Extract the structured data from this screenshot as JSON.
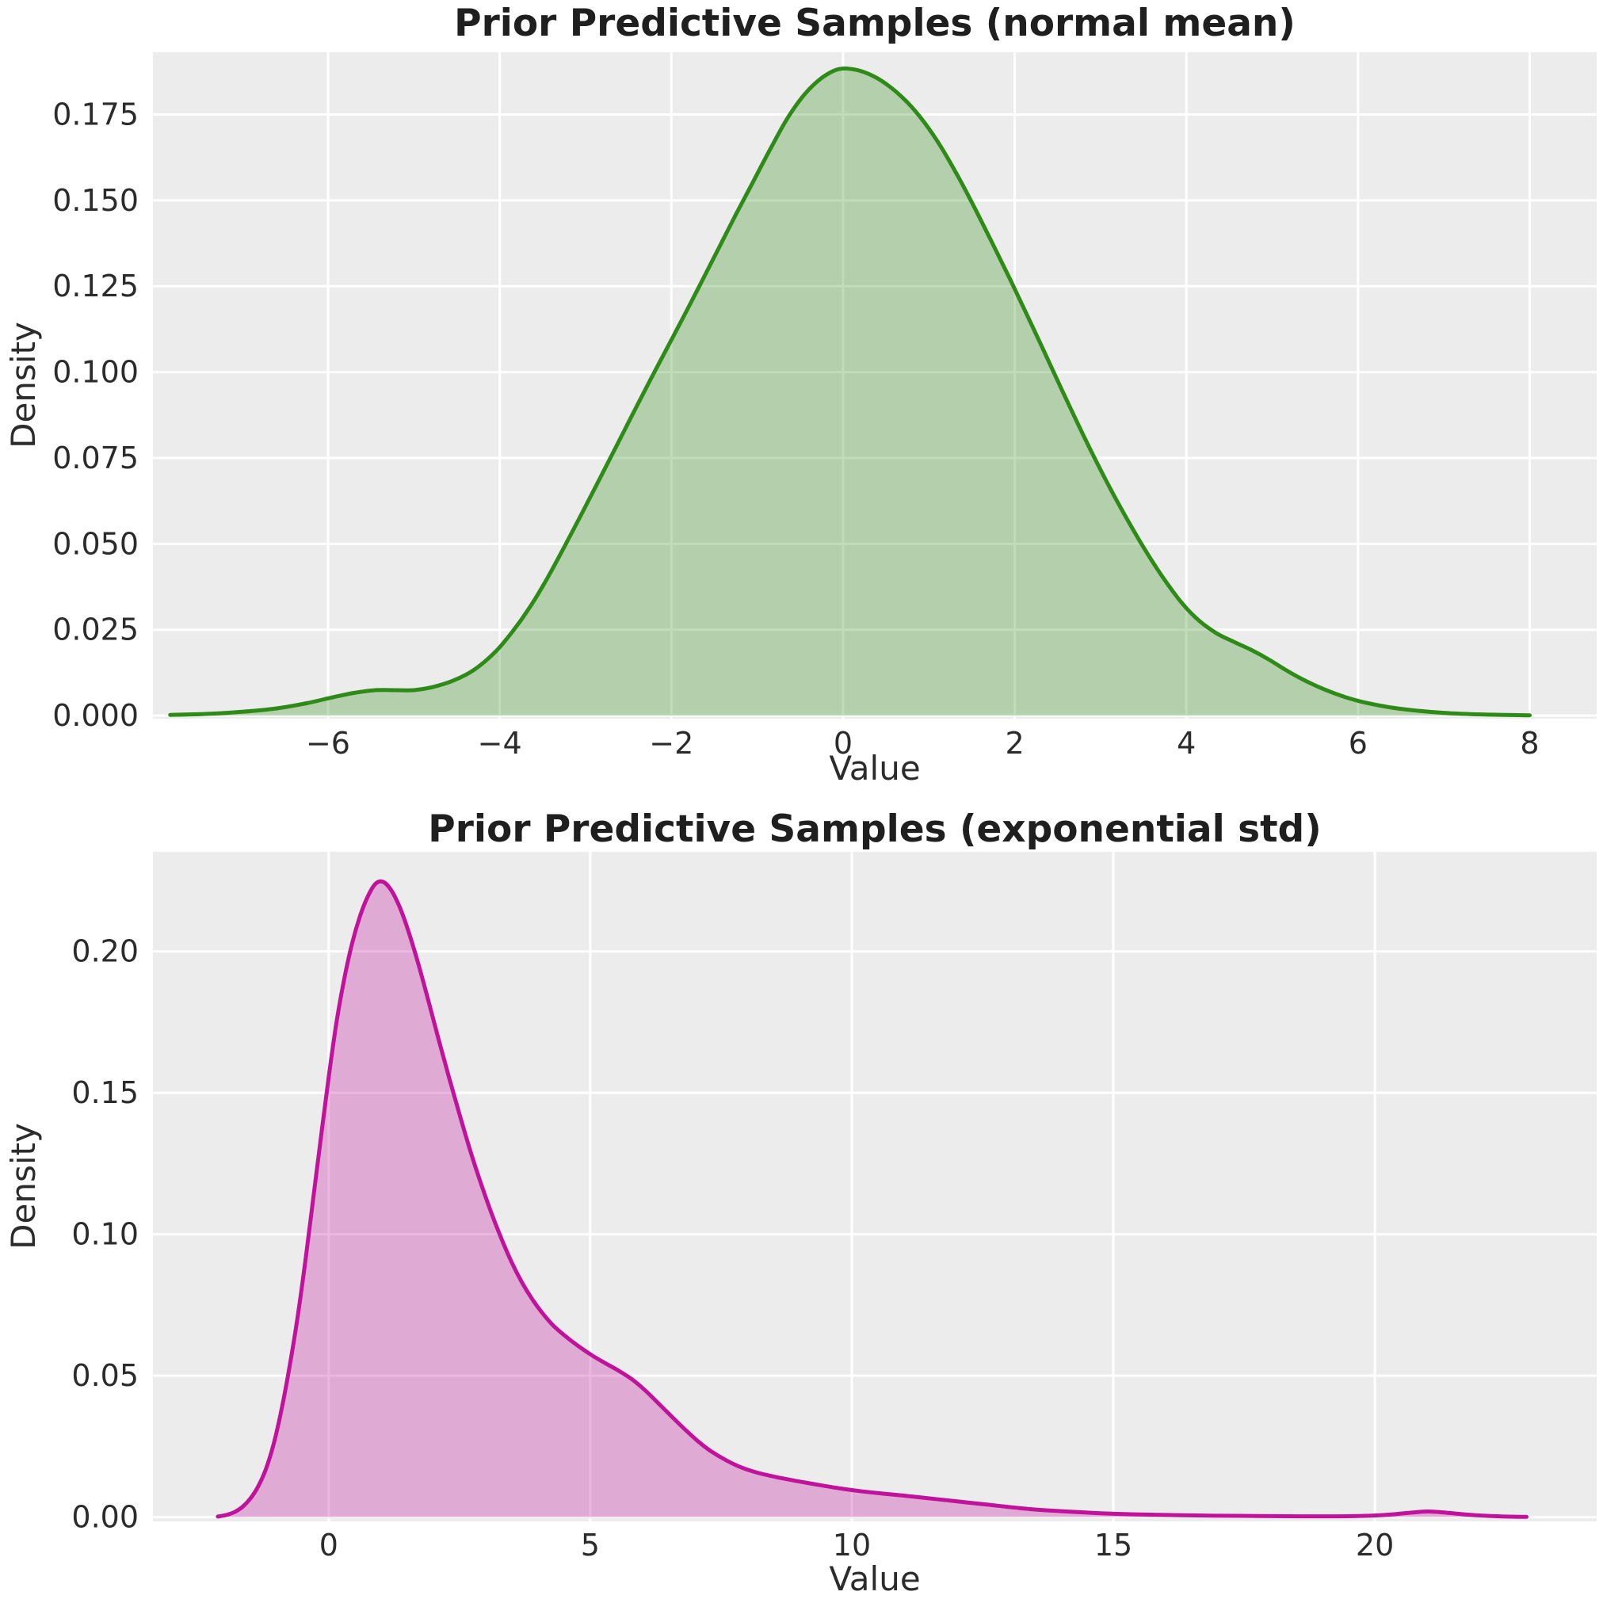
{
  "figure": {
    "background": "#ffffff",
    "plot_background": "#ececec",
    "grid_color": "#ffffff"
  },
  "chart_data": [
    {
      "type": "area",
      "kind": "kde-density",
      "title": "Prior Predictive Samples (normal mean)",
      "xlabel": "Value",
      "ylabel": "Density",
      "line_color": "#2e8b17",
      "fill_opacity": 0.3,
      "plot_background": "#ececec",
      "grid_color": "#ffffff",
      "grid": true,
      "legend": "none",
      "xlim": [
        -8.04,
        8.78
      ],
      "ylim": [
        -0.0009,
        0.1931
      ],
      "xticks": {
        "values": [
          -6,
          -4,
          -2,
          0,
          2,
          4,
          6,
          8
        ],
        "labels": [
          "−6",
          "−4",
          "−2",
          "0",
          "2",
          "4",
          "6",
          "8"
        ]
      },
      "yticks": {
        "values": [
          0,
          0.025,
          0.05,
          0.075,
          0.1,
          0.125,
          0.15,
          0.175
        ],
        "labels": [
          "0.000",
          "0.025",
          "0.050",
          "0.075",
          "0.100",
          "0.125",
          "0.150",
          "0.175"
        ]
      },
      "peak": {
        "x": -0.05,
        "density": 0.188
      },
      "points": [
        [
          -7.84,
          0.0002
        ],
        [
          -7.4,
          0.0005
        ],
        [
          -7.0,
          0.0011
        ],
        [
          -6.6,
          0.0021
        ],
        [
          -6.25,
          0.0036
        ],
        [
          -5.95,
          0.0053
        ],
        [
          -5.7,
          0.0066
        ],
        [
          -5.45,
          0.0074
        ],
        [
          -5.2,
          0.0074
        ],
        [
          -5.0,
          0.0074
        ],
        [
          -4.8,
          0.0082
        ],
        [
          -4.55,
          0.0101
        ],
        [
          -4.3,
          0.0133
        ],
        [
          -4.05,
          0.0186
        ],
        [
          -3.85,
          0.0245
        ],
        [
          -3.65,
          0.0315
        ],
        [
          -3.45,
          0.0398
        ],
        [
          -3.25,
          0.049
        ],
        [
          -3.05,
          0.0585
        ],
        [
          -2.85,
          0.0682
        ],
        [
          -2.65,
          0.078
        ],
        [
          -2.45,
          0.0878
        ],
        [
          -2.25,
          0.0975
        ],
        [
          -2.05,
          0.107
        ],
        [
          -1.85,
          0.1165
        ],
        [
          -1.65,
          0.1262
        ],
        [
          -1.45,
          0.136
        ],
        [
          -1.25,
          0.1458
        ],
        [
          -1.05,
          0.1553
        ],
        [
          -0.85,
          0.1648
        ],
        [
          -0.65,
          0.1738
        ],
        [
          -0.45,
          0.1808
        ],
        [
          -0.25,
          0.1856
        ],
        [
          -0.05,
          0.1882
        ],
        [
          0.15,
          0.188
        ],
        [
          0.35,
          0.1862
        ],
        [
          0.55,
          0.183
        ],
        [
          0.75,
          0.1785
        ],
        [
          0.95,
          0.1726
        ],
        [
          1.15,
          0.1652
        ],
        [
          1.35,
          0.1565
        ],
        [
          1.55,
          0.147
        ],
        [
          1.75,
          0.137
        ],
        [
          1.95,
          0.1268
        ],
        [
          2.15,
          0.1163
        ],
        [
          2.35,
          0.1056
        ],
        [
          2.55,
          0.0948
        ],
        [
          2.75,
          0.0842
        ],
        [
          2.95,
          0.074
        ],
        [
          3.15,
          0.0644
        ],
        [
          3.35,
          0.0554
        ],
        [
          3.55,
          0.047
        ],
        [
          3.75,
          0.0394
        ],
        [
          3.95,
          0.0327
        ],
        [
          4.15,
          0.0276
        ],
        [
          4.35,
          0.024
        ],
        [
          4.55,
          0.0215
        ],
        [
          4.75,
          0.0192
        ],
        [
          4.95,
          0.0165
        ],
        [
          5.15,
          0.0134
        ],
        [
          5.35,
          0.0106
        ],
        [
          5.6,
          0.0077
        ],
        [
          5.85,
          0.0054
        ],
        [
          6.1,
          0.0037
        ],
        [
          6.4,
          0.0023
        ],
        [
          6.7,
          0.0014
        ],
        [
          7.0,
          0.0008
        ],
        [
          7.35,
          0.0004
        ],
        [
          7.7,
          0.0002
        ],
        [
          8.0,
          0.0001
        ]
      ]
    },
    {
      "type": "area",
      "kind": "kde-density",
      "title": "Prior Predictive Samples (exponential std)",
      "xlabel": "Value",
      "ylabel": "Density",
      "line_color": "#c0129b",
      "fill_opacity": 0.3,
      "plot_background": "#ececec",
      "grid_color": "#ffffff",
      "grid": true,
      "legend": "none",
      "xlim": [
        -3.36,
        24.24
      ],
      "ylim": [
        -0.0015,
        0.2352
      ],
      "xticks": {
        "values": [
          0,
          5,
          10,
          15,
          20
        ],
        "labels": [
          "0",
          "5",
          "10",
          "15",
          "20"
        ]
      },
      "yticks": {
        "values": [
          0,
          0.05,
          0.1,
          0.15,
          0.2
        ],
        "labels": [
          "0.00",
          "0.05",
          "0.10",
          "0.15",
          "0.20"
        ]
      },
      "peak": {
        "x": 1.0,
        "density": 0.2245
      },
      "points": [
        [
          -2.12,
          0.0002
        ],
        [
          -1.95,
          0.0008
        ],
        [
          -1.8,
          0.0018
        ],
        [
          -1.65,
          0.0036
        ],
        [
          -1.5,
          0.0065
        ],
        [
          -1.35,
          0.0108
        ],
        [
          -1.2,
          0.017
        ],
        [
          -1.05,
          0.026
        ],
        [
          -0.9,
          0.0382
        ],
        [
          -0.75,
          0.053
        ],
        [
          -0.6,
          0.07
        ],
        [
          -0.45,
          0.09
        ],
        [
          -0.3,
          0.112
        ],
        [
          -0.15,
          0.134
        ],
        [
          0.0,
          0.1555
        ],
        [
          0.15,
          0.175
        ],
        [
          0.3,
          0.1905
        ],
        [
          0.45,
          0.203
        ],
        [
          0.6,
          0.2125
        ],
        [
          0.75,
          0.2195
        ],
        [
          0.9,
          0.224
        ],
        [
          1.05,
          0.2245
        ],
        [
          1.2,
          0.2215
        ],
        [
          1.35,
          0.216
        ],
        [
          1.5,
          0.2085
        ],
        [
          1.7,
          0.1965
        ],
        [
          1.9,
          0.183
        ],
        [
          2.1,
          0.169
        ],
        [
          2.3,
          0.1555
        ],
        [
          2.5,
          0.1425
        ],
        [
          2.7,
          0.13
        ],
        [
          2.9,
          0.1185
        ],
        [
          3.1,
          0.108
        ],
        [
          3.3,
          0.0985
        ],
        [
          3.5,
          0.09
        ],
        [
          3.7,
          0.0828
        ],
        [
          3.9,
          0.0768
        ],
        [
          4.1,
          0.0718
        ],
        [
          4.3,
          0.0676
        ],
        [
          4.55,
          0.0636
        ],
        [
          4.8,
          0.0601
        ],
        [
          5.05,
          0.057
        ],
        [
          5.3,
          0.0543
        ],
        [
          5.55,
          0.0517
        ],
        [
          5.8,
          0.0487
        ],
        [
          6.05,
          0.0448
        ],
        [
          6.3,
          0.0403
        ],
        [
          6.55,
          0.0357
        ],
        [
          6.8,
          0.0312
        ],
        [
          7.05,
          0.027
        ],
        [
          7.3,
          0.0234
        ],
        [
          7.6,
          0.0201
        ],
        [
          7.9,
          0.0175
        ],
        [
          8.2,
          0.0157
        ],
        [
          8.6,
          0.014
        ],
        [
          9.0,
          0.0126
        ],
        [
          9.4,
          0.0113
        ],
        [
          9.8,
          0.0101
        ],
        [
          10.2,
          0.0091
        ],
        [
          10.6,
          0.0083
        ],
        [
          11.0,
          0.0076
        ],
        [
          11.4,
          0.0068
        ],
        [
          11.8,
          0.006
        ],
        [
          12.2,
          0.0052
        ],
        [
          12.6,
          0.0044
        ],
        [
          13.0,
          0.0036
        ],
        [
          13.5,
          0.0027
        ],
        [
          14.0,
          0.0021
        ],
        [
          14.5,
          0.0016
        ],
        [
          15.0,
          0.0012
        ],
        [
          15.6,
          0.0009
        ],
        [
          16.2,
          0.0007
        ],
        [
          17.0,
          0.0005
        ],
        [
          17.8,
          0.0004
        ],
        [
          18.6,
          0.0003
        ],
        [
          19.3,
          0.0003
        ],
        [
          19.9,
          0.0005
        ],
        [
          20.3,
          0.0009
        ],
        [
          20.7,
          0.0016
        ],
        [
          21.0,
          0.002
        ],
        [
          21.3,
          0.0017
        ],
        [
          21.7,
          0.001
        ],
        [
          22.1,
          0.0005
        ],
        [
          22.5,
          0.0002
        ],
        [
          22.9,
          0.0001
        ]
      ]
    }
  ]
}
